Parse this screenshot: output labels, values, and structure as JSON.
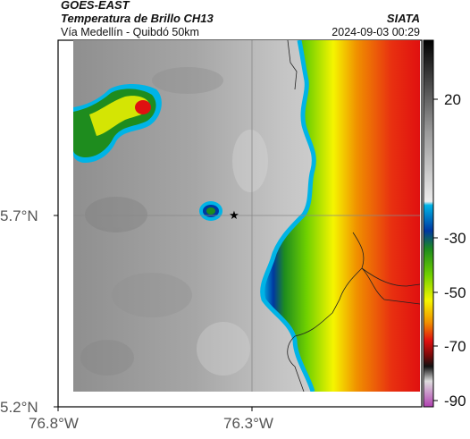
{
  "header": {
    "satellite": "GOES-EAST",
    "product": "Temperatura de Brillo CH13",
    "route": "Vía Medellín - Quibdó 50km",
    "agency": "SIATA",
    "datetime": "2024-09-03 00:29"
  },
  "map": {
    "lat_ticks": [
      "5.7°N",
      "5.2°N"
    ],
    "lon_ticks": [
      "76.8°W",
      "76.3°W"
    ],
    "marker": "star"
  },
  "colorbar": {
    "ticks": [
      "20",
      "-30",
      "-50",
      "-70",
      "-90"
    ],
    "palette": [
      "#000000",
      "#555555",
      "#aaaaaa",
      "#e8e8e8",
      "#00b4e6",
      "#0038a0",
      "#1e8c1e",
      "#6fd000",
      "#f5f500",
      "#f09000",
      "#e01010",
      "#7a0a0a",
      "#111111",
      "#dddddd",
      "#b040b0"
    ]
  }
}
